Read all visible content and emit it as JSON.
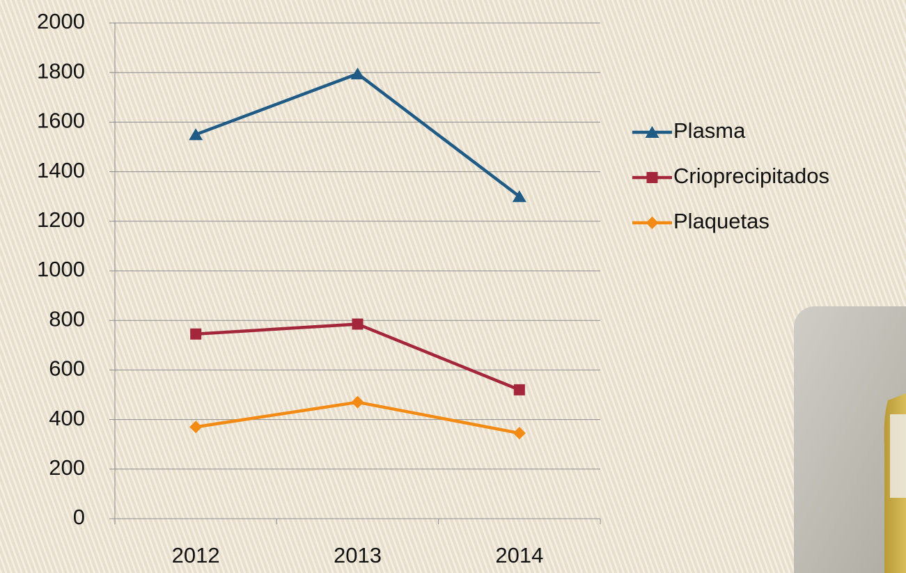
{
  "chart_data": {
    "type": "line",
    "categories": [
      "2012",
      "2013",
      "2014"
    ],
    "series": [
      {
        "name": "Plasma",
        "color": "#1f5b84",
        "marker": "triangle",
        "values": [
          1550,
          1795,
          1300
        ]
      },
      {
        "name": "Crioprecipitados",
        "color": "#a3263a",
        "marker": "square",
        "values": [
          745,
          785,
          520
        ]
      },
      {
        "name": "Plaquetas",
        "color": "#f28a13",
        "marker": "diamond",
        "values": [
          370,
          470,
          345
        ]
      }
    ],
    "ylim": [
      0,
      2000
    ],
    "yticks": [
      0,
      200,
      400,
      600,
      800,
      1000,
      1200,
      1400,
      1600,
      1800,
      2000
    ],
    "grid": true,
    "legend": "right"
  }
}
